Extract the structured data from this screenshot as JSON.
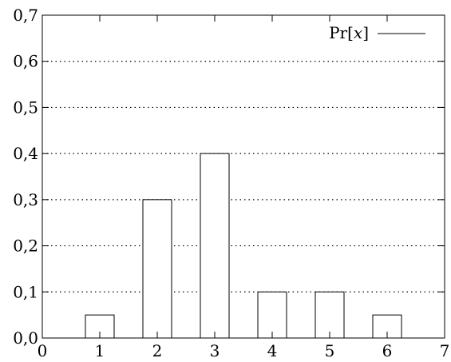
{
  "chart_data": {
    "type": "bar",
    "x": [
      1,
      2,
      3,
      4,
      5,
      6
    ],
    "values": [
      0.05,
      0.3,
      0.4,
      0.1,
      0.1,
      0.05
    ],
    "series": [
      {
        "name_prefix": "Pr[",
        "name_var": "x",
        "name_suffix": "]",
        "values": [
          0.05,
          0.3,
          0.4,
          0.1,
          0.1,
          0.05
        ]
      }
    ],
    "xlim": [
      0,
      7
    ],
    "ylim": [
      0,
      0.7
    ],
    "xticks": [
      {
        "value": 0,
        "label": "0"
      },
      {
        "value": 1,
        "label": "1"
      },
      {
        "value": 2,
        "label": "2"
      },
      {
        "value": 3,
        "label": "3"
      },
      {
        "value": 4,
        "label": "4"
      },
      {
        "value": 5,
        "label": "5"
      },
      {
        "value": 6,
        "label": "6"
      },
      {
        "value": 7,
        "label": "7"
      }
    ],
    "yticks": [
      {
        "value": 0.0,
        "label": "0,0"
      },
      {
        "value": 0.1,
        "label": "0,1"
      },
      {
        "value": 0.2,
        "label": "0,2"
      },
      {
        "value": 0.3,
        "label": "0,3"
      },
      {
        "value": 0.4,
        "label": "0,4"
      },
      {
        "value": 0.5,
        "label": "0,5"
      },
      {
        "value": 0.6,
        "label": "0,6"
      },
      {
        "value": 0.7,
        "label": "0,7"
      }
    ],
    "bar_width": 0.5,
    "grid": "horizontal-dotted",
    "legend_position": "top-right",
    "title": "",
    "xlabel": "",
    "ylabel": ""
  }
}
